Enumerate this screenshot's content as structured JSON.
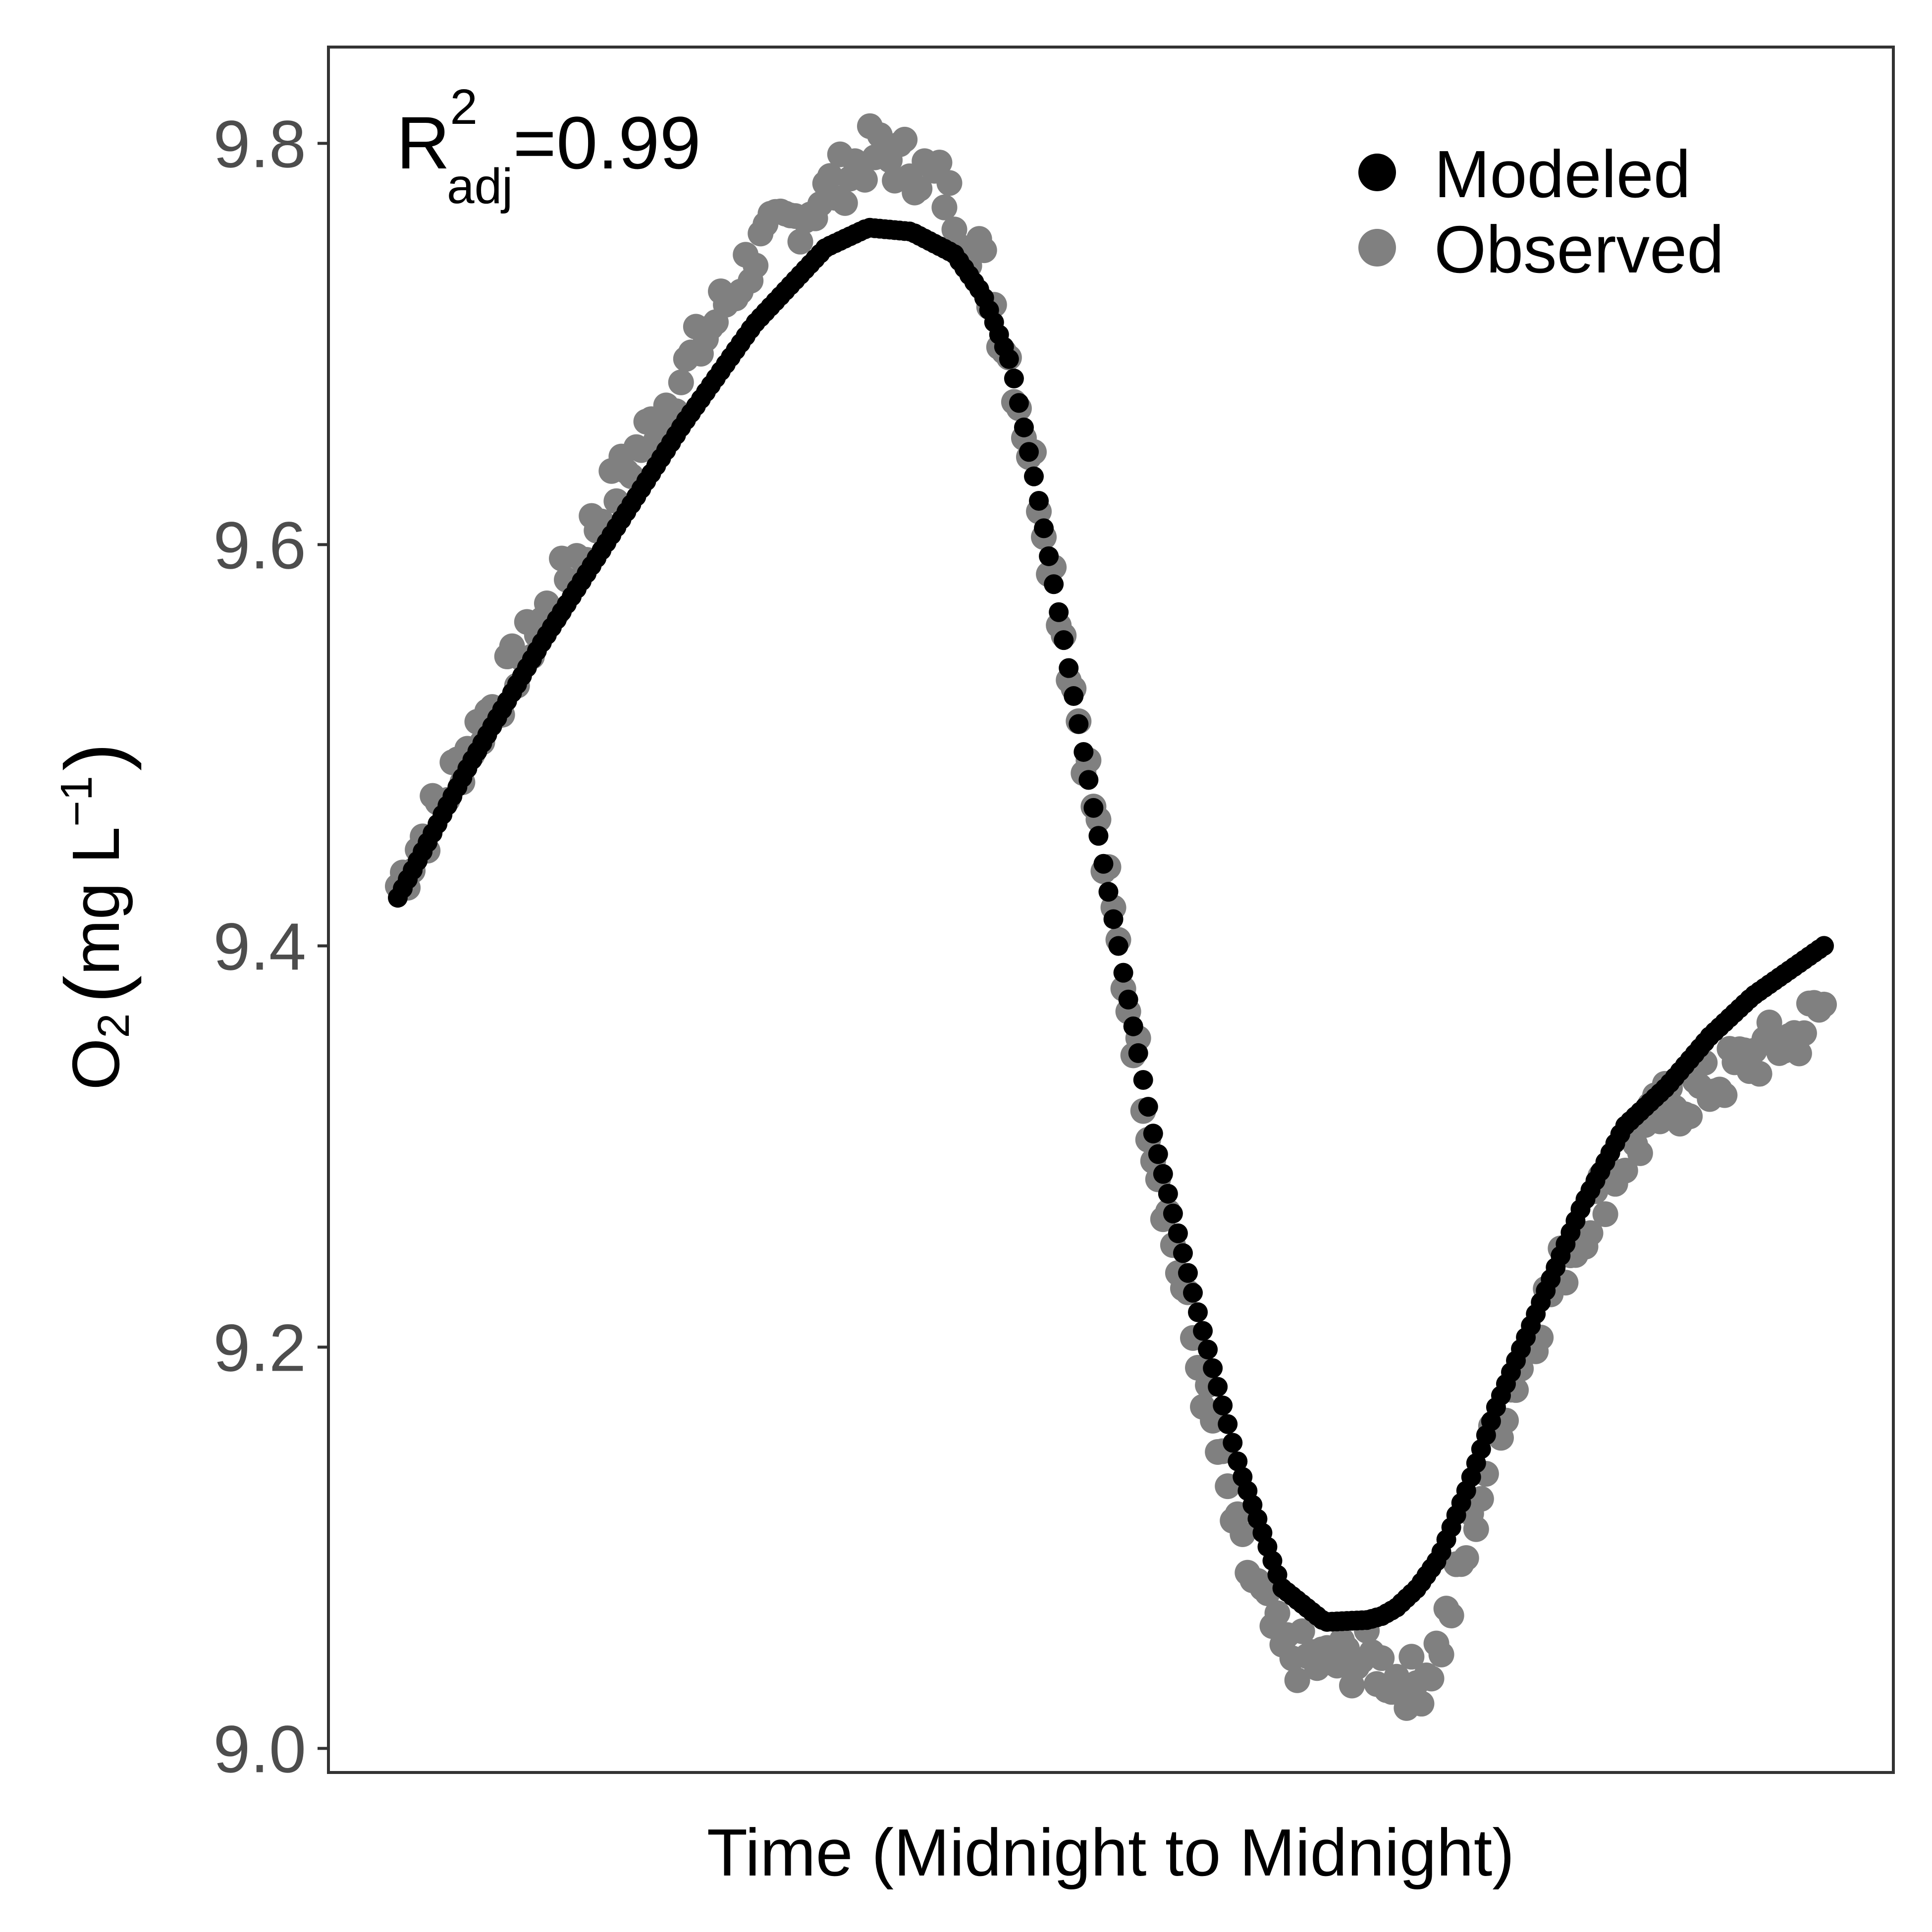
{
  "chart_data": {
    "type": "scatter",
    "title": "",
    "xlabel": "Time (Midnight to Midnight)",
    "ylabel": {
      "prefix": "O",
      "sub": "2",
      "unit_open": "(",
      "unit_text": "mg L",
      "unit_sup": "−1",
      "unit_close": ")"
    },
    "xlim": [
      0,
      1
    ],
    "ylim": [
      8.988,
      9.848
    ],
    "y_ticks": [
      "9.0",
      "9.2",
      "9.4",
      "9.6",
      "9.8"
    ],
    "x_ticks": [],
    "grid": false,
    "legend_position": "top-right",
    "annotation": {
      "base": "R",
      "sup": "2",
      "sub": "adj",
      "value": "=0.99"
    },
    "colors": {
      "modeled": "#000000",
      "observed": "#808080",
      "axis_text": "#4d4d4d",
      "panel_border": "#333333"
    },
    "series": [
      {
        "name": "Modeled",
        "color": "#000000",
        "x": [
          0.0,
          0.05,
          0.1,
          0.15,
          0.2,
          0.25,
          0.3,
          0.33,
          0.36,
          0.39,
          0.41,
          0.43,
          0.45,
          0.47,
          0.5,
          0.53,
          0.56,
          0.59,
          0.62,
          0.65,
          0.68,
          0.69,
          0.7,
          0.715,
          0.73,
          0.75,
          0.77,
          0.8,
          0.83,
          0.86,
          0.89,
          0.92,
          0.95,
          0.98,
          1.0
        ],
        "y": [
          9.424,
          9.49,
          9.55,
          9.605,
          9.66,
          9.71,
          9.748,
          9.758,
          9.756,
          9.745,
          9.725,
          9.69,
          9.62,
          9.54,
          9.42,
          9.305,
          9.22,
          9.14,
          9.08,
          9.063,
          9.064,
          9.066,
          9.07,
          9.08,
          9.095,
          9.13,
          9.17,
          9.22,
          9.27,
          9.31,
          9.33,
          9.355,
          9.375,
          9.39,
          9.4
        ]
      },
      {
        "name": "Observed",
        "color": "#808080",
        "x": [
          0.0,
          0.05,
          0.1,
          0.15,
          0.2,
          0.25,
          0.3,
          0.33,
          0.36,
          0.38,
          0.41,
          0.43,
          0.45,
          0.47,
          0.5,
          0.53,
          0.56,
          0.59,
          0.62,
          0.65,
          0.68,
          0.69,
          0.7,
          0.715,
          0.73,
          0.75,
          0.77,
          0.8,
          0.83,
          0.86,
          0.89,
          0.92,
          0.95,
          0.98,
          1.0
        ],
        "y": [
          9.43,
          9.5,
          9.56,
          9.625,
          9.685,
          9.745,
          9.775,
          9.795,
          9.79,
          9.78,
          9.74,
          9.69,
          9.625,
          9.545,
          9.42,
          9.3,
          9.195,
          9.1,
          9.048,
          9.042,
          9.045,
          9.04,
          9.035,
          9.032,
          9.05,
          9.1,
          9.16,
          9.215,
          9.26,
          9.295,
          9.32,
          9.33,
          9.345,
          9.355,
          9.37
        ]
      }
    ]
  }
}
